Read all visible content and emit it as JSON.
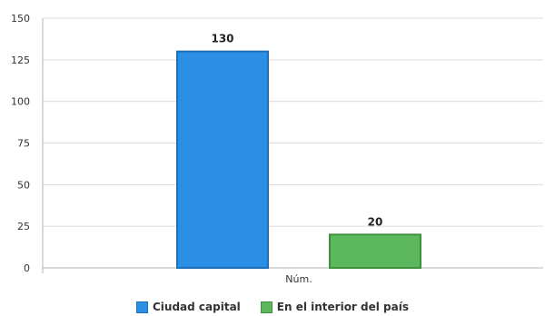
{
  "chart_data": {
    "type": "bar",
    "categories": [
      "Núm."
    ],
    "series": [
      {
        "name": "Ciudad capital",
        "values": [
          130
        ],
        "color": "#2b8fe6",
        "stroke": "#1f6fb8"
      },
      {
        "name": "En el interior del país",
        "values": [
          20
        ],
        "color": "#5cb85c",
        "stroke": "#3e8f3e"
      }
    ],
    "data_labels": [
      "130",
      "20"
    ],
    "title": "",
    "xlabel": "",
    "ylabel": "",
    "ylim": [
      0,
      150
    ],
    "yticks": [
      0,
      25,
      50,
      75,
      100,
      125,
      150
    ],
    "grid": true,
    "legend_position": "bottom"
  }
}
